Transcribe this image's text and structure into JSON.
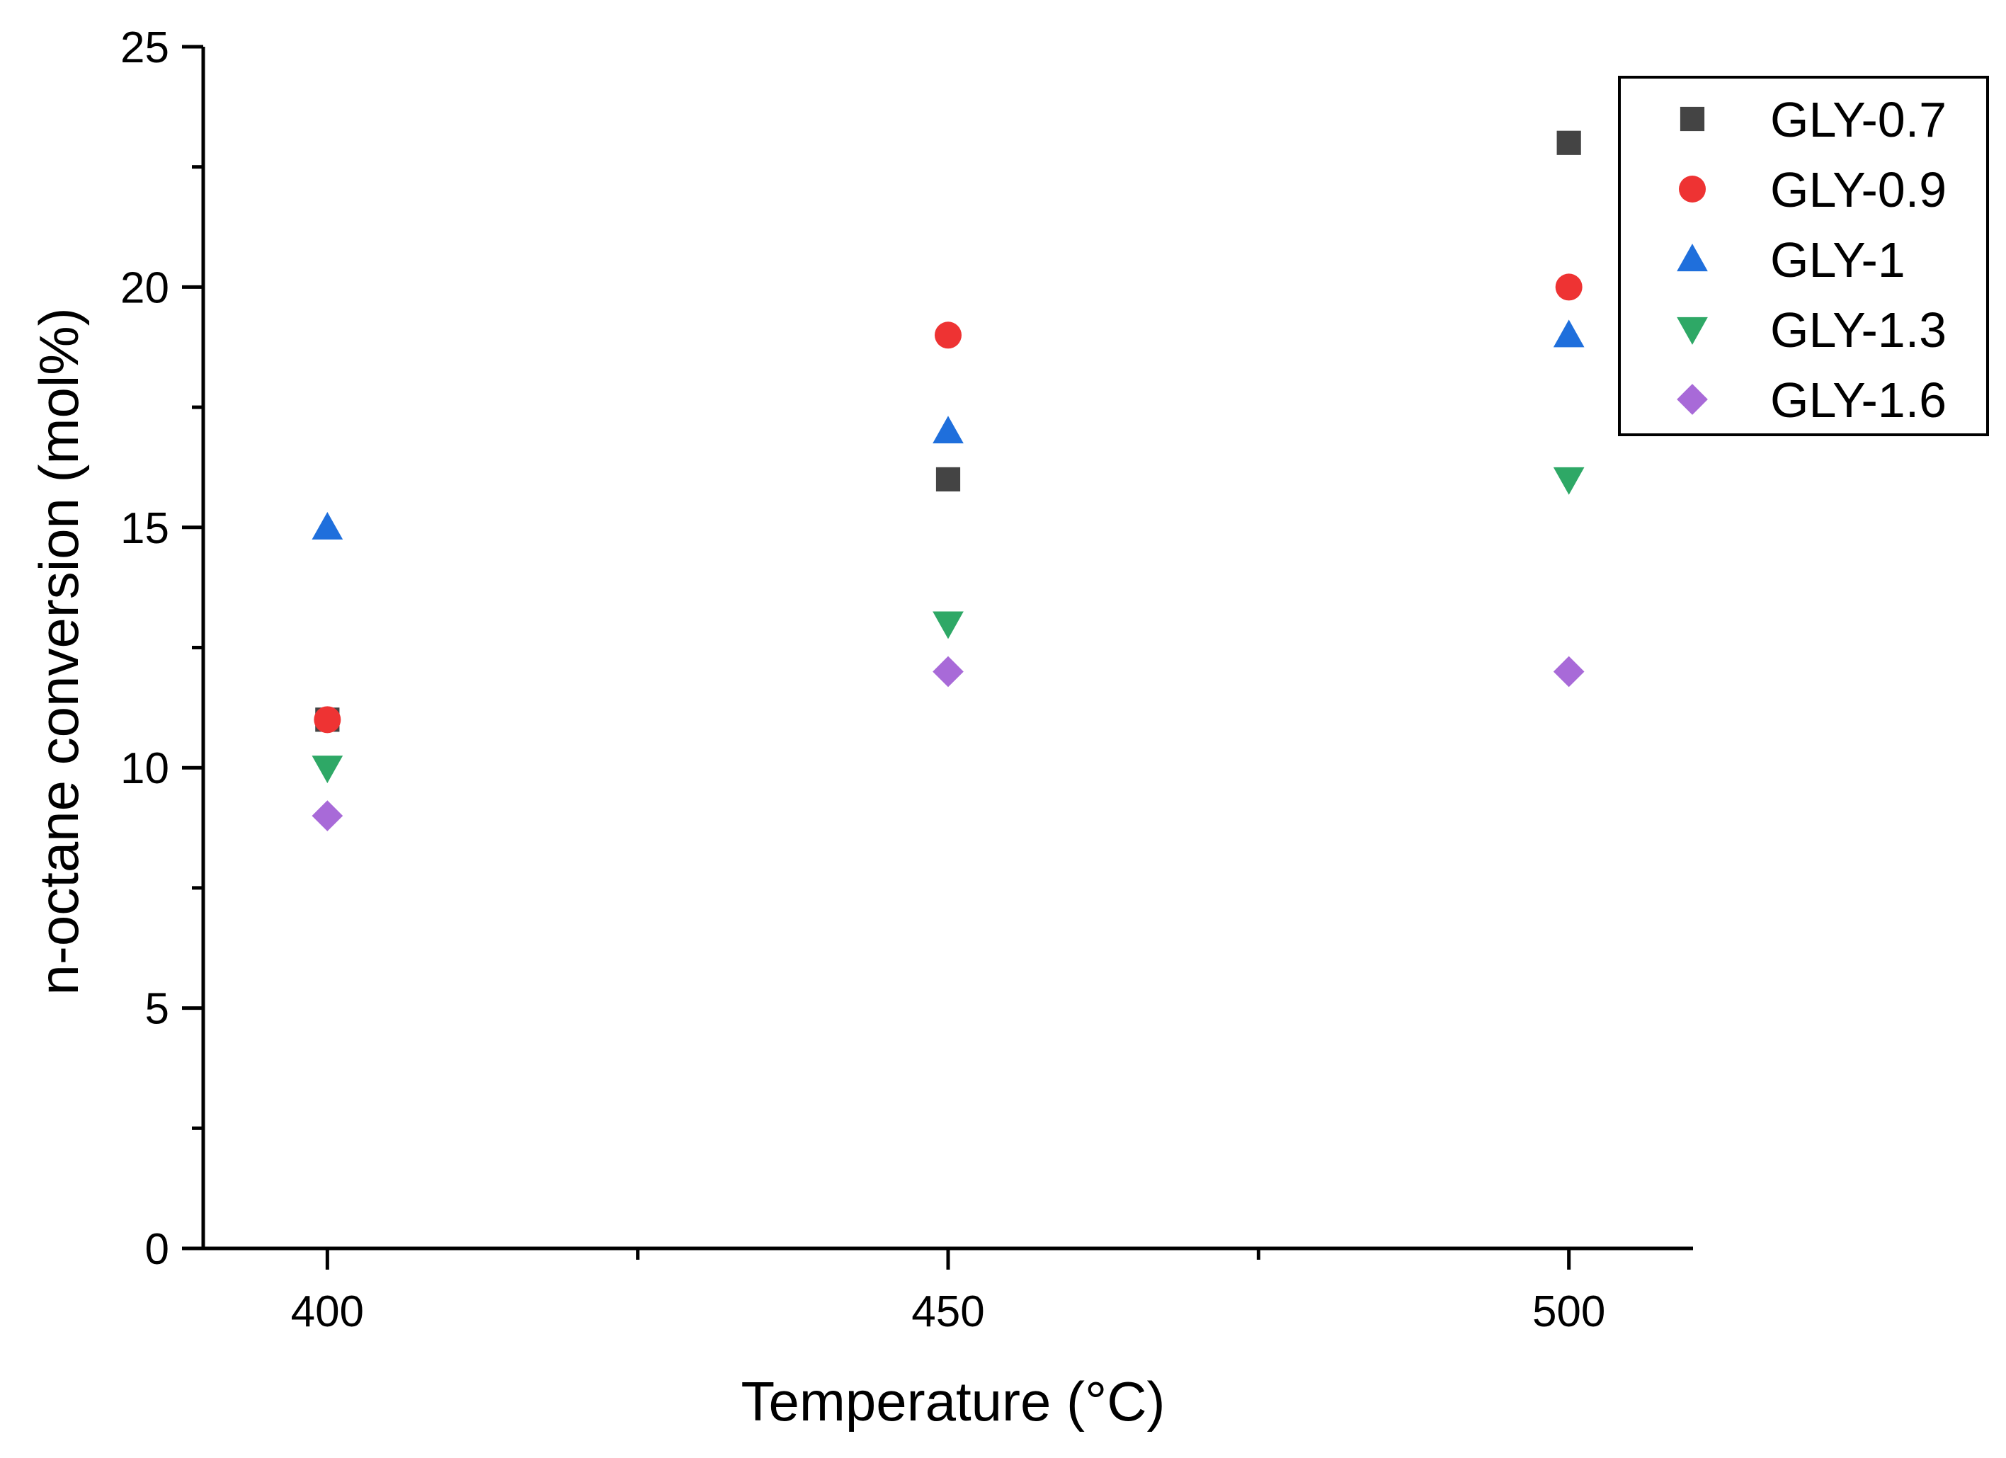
{
  "chart_data": {
    "type": "scatter",
    "title": "",
    "xlabel": "Temperature (°C)",
    "ylabel": "n-octane conversion (mol%)",
    "xlim": [
      390,
      510
    ],
    "ylim": [
      0,
      25
    ],
    "xticks": [
      400,
      450,
      500
    ],
    "xminor": [
      425,
      475
    ],
    "yticks": [
      0,
      5,
      10,
      15,
      20,
      25
    ],
    "yminor": [
      2.5,
      7.5,
      12.5,
      17.5,
      22.5
    ],
    "xtick_labels": [
      "400",
      "450",
      "500"
    ],
    "ytick_labels": [
      "0",
      "5",
      "10",
      "15",
      "20",
      "25"
    ],
    "legend_position": "top-right",
    "series": [
      {
        "name": "GLY-0.7",
        "marker": "square",
        "color": "#444444",
        "x": [
          400,
          450,
          500
        ],
        "y": [
          11,
          16,
          23
        ]
      },
      {
        "name": "GLY-0.9",
        "marker": "circle",
        "color": "#ee3333",
        "x": [
          400,
          450,
          500
        ],
        "y": [
          11,
          19,
          20
        ]
      },
      {
        "name": "GLY-1",
        "marker": "triangle-up",
        "color": "#1f6fdc",
        "x": [
          400,
          450,
          500
        ],
        "y": [
          15,
          17,
          19
        ]
      },
      {
        "name": "GLY-1.3",
        "marker": "triangle-down",
        "color": "#2ea866",
        "x": [
          400,
          450,
          500
        ],
        "y": [
          10,
          13,
          16
        ]
      },
      {
        "name": "GLY-1.6",
        "marker": "diamond",
        "color": "#a86ad8",
        "x": [
          400,
          450,
          500
        ],
        "y": [
          9,
          12,
          12
        ]
      }
    ]
  }
}
